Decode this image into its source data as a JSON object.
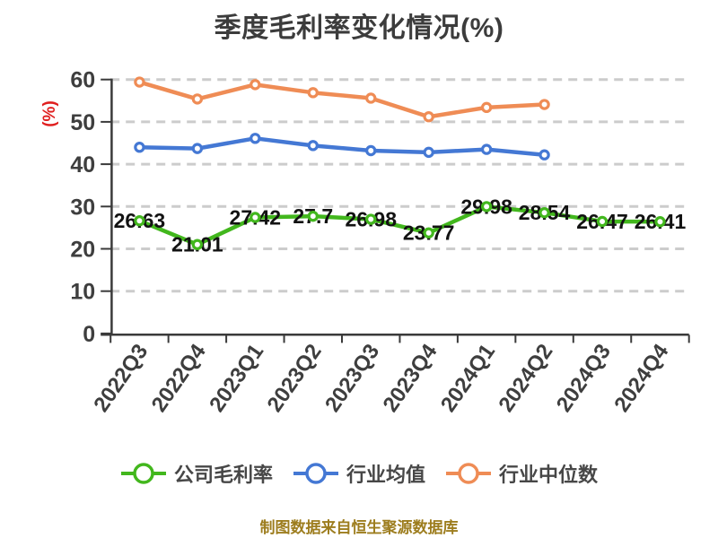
{
  "chart_data": {
    "type": "line",
    "title": "季度毛利率变化情况(%)",
    "ylabel": "(%)",
    "xlabel": "",
    "footer": "制图数据来自恒生聚源数据库",
    "ylim": [
      0,
      60
    ],
    "yticks": [
      0,
      10,
      20,
      30,
      40,
      50,
      60
    ],
    "grid": "horizontal-dashed",
    "legend_position": "bottom",
    "x_label_rotation_deg": -55,
    "categories": [
      "2022Q3",
      "2022Q4",
      "2023Q1",
      "2023Q2",
      "2023Q3",
      "2023Q4",
      "2024Q1",
      "2024Q2",
      "2024Q3",
      "2024Q4"
    ],
    "series": [
      {
        "name": "公司毛利率",
        "color": "#42b71d",
        "show_labels": true,
        "values": [
          26.63,
          21.01,
          27.42,
          27.7,
          26.98,
          23.77,
          29.98,
          28.54,
          26.47,
          26.41
        ],
        "labels": [
          "26.63",
          "21.01",
          "27.42",
          "27.7",
          "26.98",
          "23.77",
          "29.98",
          "28.54",
          "26.47",
          "26.41"
        ]
      },
      {
        "name": "行业均值",
        "color": "#4478d4",
        "show_labels": false,
        "values": [
          44.0,
          43.7,
          46.1,
          44.4,
          43.2,
          42.8,
          43.5,
          42.2
        ]
      },
      {
        "name": "行业中位数",
        "color": "#ef8c55",
        "show_labels": false,
        "values": [
          59.4,
          55.4,
          58.8,
          56.9,
          55.6,
          51.2,
          53.4,
          54.1
        ]
      }
    ],
    "colors": {
      "title": "#3c3c3c",
      "axis": "#3a3a3a",
      "tick_label": "#3e3e3e",
      "grid": "#cccccc",
      "value_label": "#121212",
      "ylabel": "#e01f1f",
      "legend_text": "#474747",
      "footer": "#9d7d1e",
      "marker_fill": "#ffffff"
    }
  }
}
